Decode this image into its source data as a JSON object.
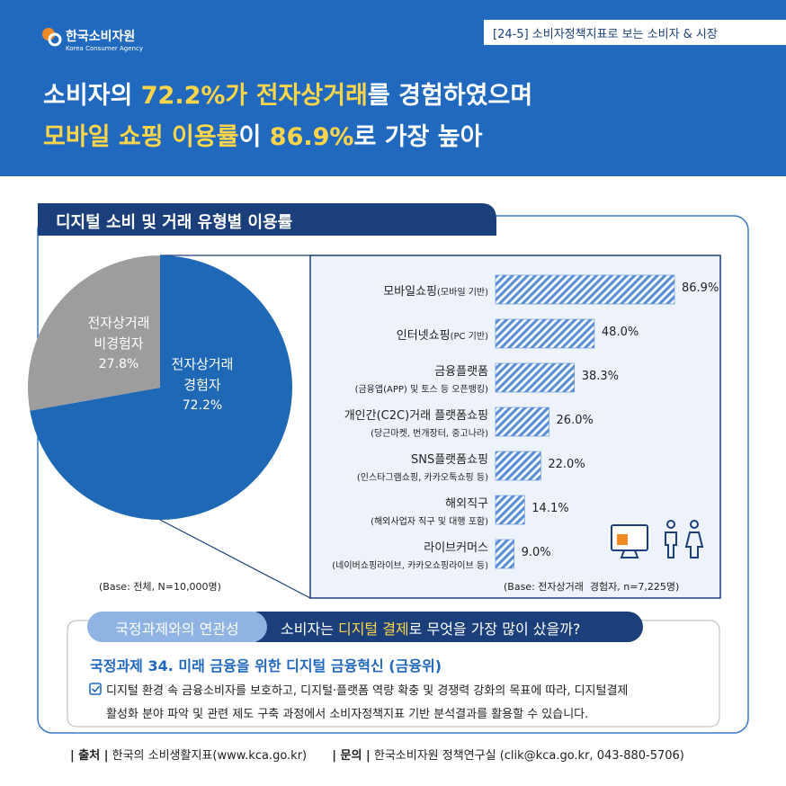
{
  "header": {
    "logo": "한국소비자원",
    "logo_sub": "Korea Consumer Agency",
    "series_tag": "[24-5] 소비자정책지표로 보는 소비자 & 시장",
    "headline": [
      [
        {
          "text": "소비자의 ",
          "highlight": false
        },
        {
          "text": "72.2%가",
          "highlight": true
        },
        {
          "text": " ",
          "highlight": false
        },
        {
          "text": "전자상거래",
          "highlight": true
        },
        {
          "text": "를 경험하였으며",
          "highlight": false
        }
      ],
      [
        {
          "text": "모바일 쇼핑 이용률",
          "highlight": true
        },
        {
          "text": "이 ",
          "highlight": false
        },
        {
          "text": "86.9%",
          "highlight": true
        },
        {
          "text": "로 가장 높아",
          "highlight": false
        }
      ]
    ]
  },
  "section_title": "디지털 소비 및 거래 유형별 이용률",
  "chart_data": [
    {
      "type": "pie",
      "categories": [
        "전자상거래\n경험자",
        "전자상거래\n비경험자"
      ],
      "values": [
        72.2,
        27.8
      ],
      "value_labels": [
        "72.2%",
        "27.8%"
      ],
      "colors": [
        "#1f68b5",
        "#9d9d9d"
      ],
      "note": "(Base: 전체, N=10,000명)"
    },
    {
      "type": "bar",
      "orientation": "horizontal",
      "categories": [
        "모바일쇼핑",
        "인터넷쇼핑",
        "금융플랫폼",
        "개인간(C2C)거래 플랫폼쇼핑",
        "SNS플랫폼쇼핑",
        "해외직구",
        "라이브커머스"
      ],
      "category_notes": [
        "(모바일 기반)",
        "(PC 기반)",
        "(금융앱(APP) 및 토스 등 오픈뱅킹)",
        "(당근마켓, 번개장터, 중고나라)",
        "(인스타그램쇼핑, 카카오톡쇼핑 등)",
        "(해외사업자 직구 및 대행 포함)",
        "(네이버쇼핑라이브, 카카오쇼핑라이브 등)"
      ],
      "values": [
        86.9,
        48.0,
        38.3,
        26.0,
        22.0,
        14.1,
        9.0
      ],
      "value_labels": [
        "86.9%",
        "48.0%",
        "38.3%",
        "26.0%",
        "22.0%",
        "14.1%",
        "9.0%"
      ],
      "color": "#5b8fd6",
      "pattern": "hatch",
      "note": "(Base: 전자상거래  경험자, n=7,225명)"
    }
  ],
  "policy": {
    "tab": "국정과제와의 연관성",
    "question": [
      {
        "text": "소비자는 ",
        "highlight": false
      },
      {
        "text": "디지털 결제",
        "highlight": true
      },
      {
        "text": "로 무엇을 가장 많이 샀을까?",
        "highlight": false
      }
    ],
    "title": "국정과제 34. 미래 금융을 위한 디지털 금융혁신 (금융위)",
    "body": "디지털 환경 속 금융소비자를 보호하고, 디지털·플랫폼 역량 확충 및 경쟁력 강화의 목표에 따라, 디지털결제\n활성화 분야 파악 및 관련 제도 구축 과정에서 소비자정책지표 기반 분석결과를 활용할 수 있습니다."
  },
  "footer": {
    "source_label": "| 출처 |",
    "source": "한국의 소비생활지표(www.kca.go.kr)",
    "contact_label": "| 문의 |",
    "contact": "한국소비자원 정책연구실 (clik@kca.go.kr, 043-880-5706)"
  }
}
